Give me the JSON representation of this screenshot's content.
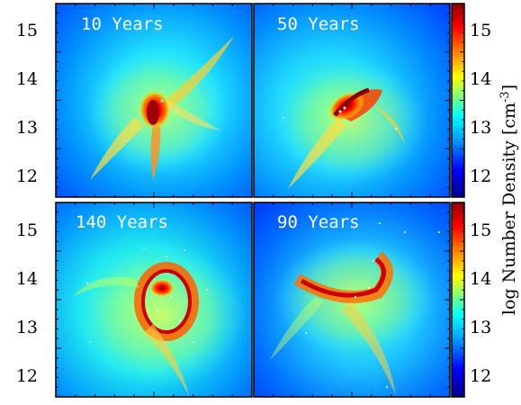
{
  "figure": {
    "colorbar_label": "log Number Density [cm",
    "colorbar_unit_exponent": "-3",
    "colorbar_unit_close": "]",
    "y_ticks": [
      "15",
      "14",
      "13",
      "12"
    ],
    "colorbar_ticks": [
      "15",
      "14",
      "13",
      "12"
    ],
    "panels": [
      {
        "label": "10 Years"
      },
      {
        "label": "50 Years"
      },
      {
        "label": "140 Years"
      },
      {
        "label": "90 Years"
      }
    ],
    "colormap": [
      "#00008b",
      "#0000ff",
      "#00a0ff",
      "#00ffff",
      "#80ff80",
      "#ffff00",
      "#ff8000",
      "#ff0000",
      "#8b0000"
    ]
  }
}
